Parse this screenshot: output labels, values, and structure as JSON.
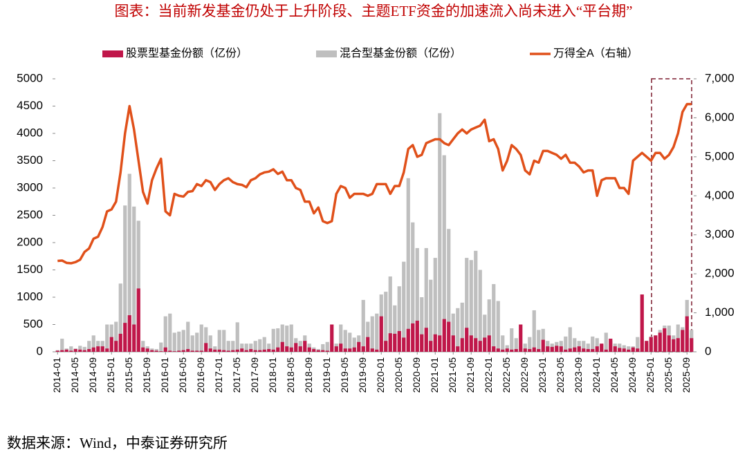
{
  "chart_data": {
    "type": "bar",
    "title": "图表：当前新发基金仍处于上升阶段、主题ETF资金的加速流入尚未进入“平台期”",
    "source": "数据来源：Wind，中泰证券研究所",
    "categories": [
      "2014-01",
      null,
      null,
      null,
      "2014-05",
      null,
      null,
      null,
      "2014-09",
      null,
      null,
      null,
      "2015-01",
      null,
      null,
      null,
      "2015-05",
      null,
      null,
      null,
      "2015-09",
      null,
      null,
      null,
      "2016-01",
      null,
      null,
      null,
      "2016-05",
      null,
      null,
      null,
      "2016-09",
      null,
      null,
      null,
      "2017-01",
      null,
      null,
      null,
      "2017-05",
      null,
      null,
      null,
      "2017-09",
      null,
      null,
      null,
      "2018-01",
      null,
      null,
      null,
      "2018-05",
      null,
      null,
      null,
      "2018-09",
      null,
      null,
      null,
      "2019-01",
      null,
      null,
      null,
      "2019-05",
      null,
      null,
      null,
      "2019-09",
      null,
      null,
      null,
      "2020-01",
      null,
      null,
      null,
      "2020-05",
      null,
      null,
      null,
      "2020-09",
      null,
      null,
      null,
      "2021-01",
      null,
      null,
      null,
      "2021-05",
      null,
      null,
      null,
      "2021-09",
      null,
      null,
      null,
      "2022-01",
      null,
      null,
      null,
      "2022-05",
      null,
      null,
      null,
      "2022-09",
      null,
      null,
      null,
      "2023-01",
      null,
      null,
      null,
      "2023-05",
      null,
      null,
      null,
      "2023-09",
      null,
      null,
      null,
      "2024-01",
      null,
      null,
      null,
      "2024-05",
      null,
      null,
      null,
      "2024-09",
      null,
      null,
      null,
      "2025-01",
      null,
      null,
      null,
      "2025-05",
      null,
      null,
      null,
      "2025-09",
      null
    ],
    "series": [
      {
        "name": "股票型基金份额（亿份）",
        "color": "#c0174a",
        "values": [
          20,
          30,
          40,
          20,
          50,
          40,
          30,
          50,
          80,
          100,
          100,
          60,
          270,
          200,
          330,
          530,
          670,
          500,
          1160,
          80,
          60,
          30,
          20,
          10,
          80,
          20,
          10,
          20,
          30,
          50,
          20,
          20,
          20,
          160,
          60,
          40,
          40,
          30,
          20,
          30,
          40,
          60,
          30,
          50,
          30,
          30,
          40,
          50,
          40,
          80,
          180,
          100,
          80,
          160,
          100,
          200,
          80,
          50,
          30,
          30,
          20,
          500,
          100,
          150,
          60,
          60,
          80,
          180,
          100,
          270,
          60,
          40,
          650,
          200,
          340,
          330,
          380,
          260,
          420,
          520,
          570,
          320,
          440,
          200,
          320,
          300,
          600,
          550,
          300,
          100,
          250,
          440,
          300,
          250,
          200,
          260,
          300,
          100,
          60,
          40,
          60,
          40,
          50,
          500,
          60,
          50,
          80,
          50,
          220,
          100,
          90,
          110,
          100,
          40,
          60,
          80,
          100,
          60,
          50,
          50,
          100,
          150,
          40,
          240,
          100,
          70,
          60,
          40,
          80,
          60,
          1050,
          200,
          270,
          300,
          350,
          430,
          300,
          230,
          250,
          400,
          650,
          250
        ]
      },
      {
        "name": "混合型基金份额（亿份）",
        "color": "#bfbfbf",
        "values": [
          30,
          240,
          60,
          100,
          60,
          110,
          90,
          200,
          300,
          200,
          200,
          500,
          500,
          550,
          1250,
          2680,
          3260,
          2660,
          2400,
          200,
          100,
          60,
          50,
          170,
          650,
          700,
          350,
          370,
          400,
          550,
          300,
          350,
          500,
          450,
          300,
          100,
          400,
          400,
          200,
          200,
          540,
          150,
          150,
          150,
          200,
          230,
          270,
          150,
          420,
          430,
          500,
          480,
          500,
          250,
          200,
          300,
          150,
          80,
          50,
          140,
          180,
          150,
          150,
          500,
          400,
          350,
          260,
          300,
          950,
          550,
          650,
          700,
          1050,
          1100,
          1380,
          850,
          1200,
          1650,
          3180,
          2370,
          1900,
          1000,
          1900,
          1320,
          1720,
          4370,
          3600,
          2250,
          700,
          800,
          900,
          1720,
          1680,
          1850,
          1500,
          680,
          960,
          1240,
          930,
          300,
          120,
          430,
          250,
          100,
          150,
          270,
          760,
          400,
          420,
          200,
          150,
          180,
          200,
          280,
          450,
          250,
          200,
          200,
          150,
          280,
          250,
          130,
          350,
          200,
          150,
          150,
          120,
          100,
          100,
          270,
          240,
          150,
          280,
          300,
          400,
          480,
          480,
          300,
          500,
          450,
          950,
          400
        ]
      },
      {
        "name": "万得全A（右轴）",
        "color": "#e0501a",
        "type": "line",
        "axis": "y2",
        "values": [
          2330,
          2340,
          2280,
          2270,
          2300,
          2360,
          2560,
          2650,
          2900,
          2950,
          3200,
          3600,
          3650,
          3850,
          4600,
          5600,
          6300,
          5700,
          4900,
          4100,
          3800,
          4400,
          4700,
          4950,
          3600,
          3500,
          4050,
          4000,
          3980,
          4100,
          4120,
          4300,
          4250,
          4400,
          4350,
          4150,
          4300,
          4400,
          4450,
          4350,
          4300,
          4280,
          4220,
          4400,
          4450,
          4550,
          4600,
          4620,
          4680,
          4560,
          4620,
          4400,
          4400,
          4200,
          4150,
          3850,
          3850,
          3550,
          3700,
          3350,
          3300,
          3350,
          4050,
          4250,
          4200,
          3950,
          4050,
          4050,
          4050,
          4000,
          4050,
          4300,
          4300,
          4300,
          4050,
          4250,
          4250,
          4600,
          5200,
          5300,
          5000,
          5050,
          5350,
          5400,
          5450,
          5450,
          5350,
          5300,
          5450,
          5600,
          5700,
          5600,
          5700,
          5750,
          5800,
          5950,
          5400,
          5450,
          5200,
          4650,
          4900,
          5300,
          5200,
          5050,
          4650,
          4550,
          4900,
          4850,
          5150,
          5150,
          5100,
          5050,
          4950,
          5050,
          4850,
          4850,
          4750,
          4600,
          4650,
          4650,
          4000,
          4400,
          4450,
          4450,
          4450,
          4200,
          4200,
          4050,
          4900,
          5000,
          5100,
          5000,
          4900,
          5100,
          5100,
          4950,
          5050,
          5250,
          5600,
          6150,
          6350,
          6350
        ]
      }
    ],
    "ylim": [
      0,
      5000
    ],
    "yticks": [
      0,
      500,
      1000,
      1500,
      2000,
      2500,
      3000,
      3500,
      4000,
      4500,
      5000
    ],
    "y2lim": [
      0,
      7000
    ],
    "y2ticks": [
      0,
      {
        "value": 1000,
        "label": "1,000"
      },
      {
        "value": 2000,
        "label": "2,000"
      },
      {
        "value": 3000,
        "label": "3,000"
      },
      {
        "value": 4000,
        "label": "4,000"
      },
      {
        "value": 5000,
        "label": "5,000"
      },
      {
        "value": 6000,
        "label": "6,000"
      },
      {
        "value": 7000,
        "label": "7,000"
      }
    ],
    "legend": "top"
  }
}
